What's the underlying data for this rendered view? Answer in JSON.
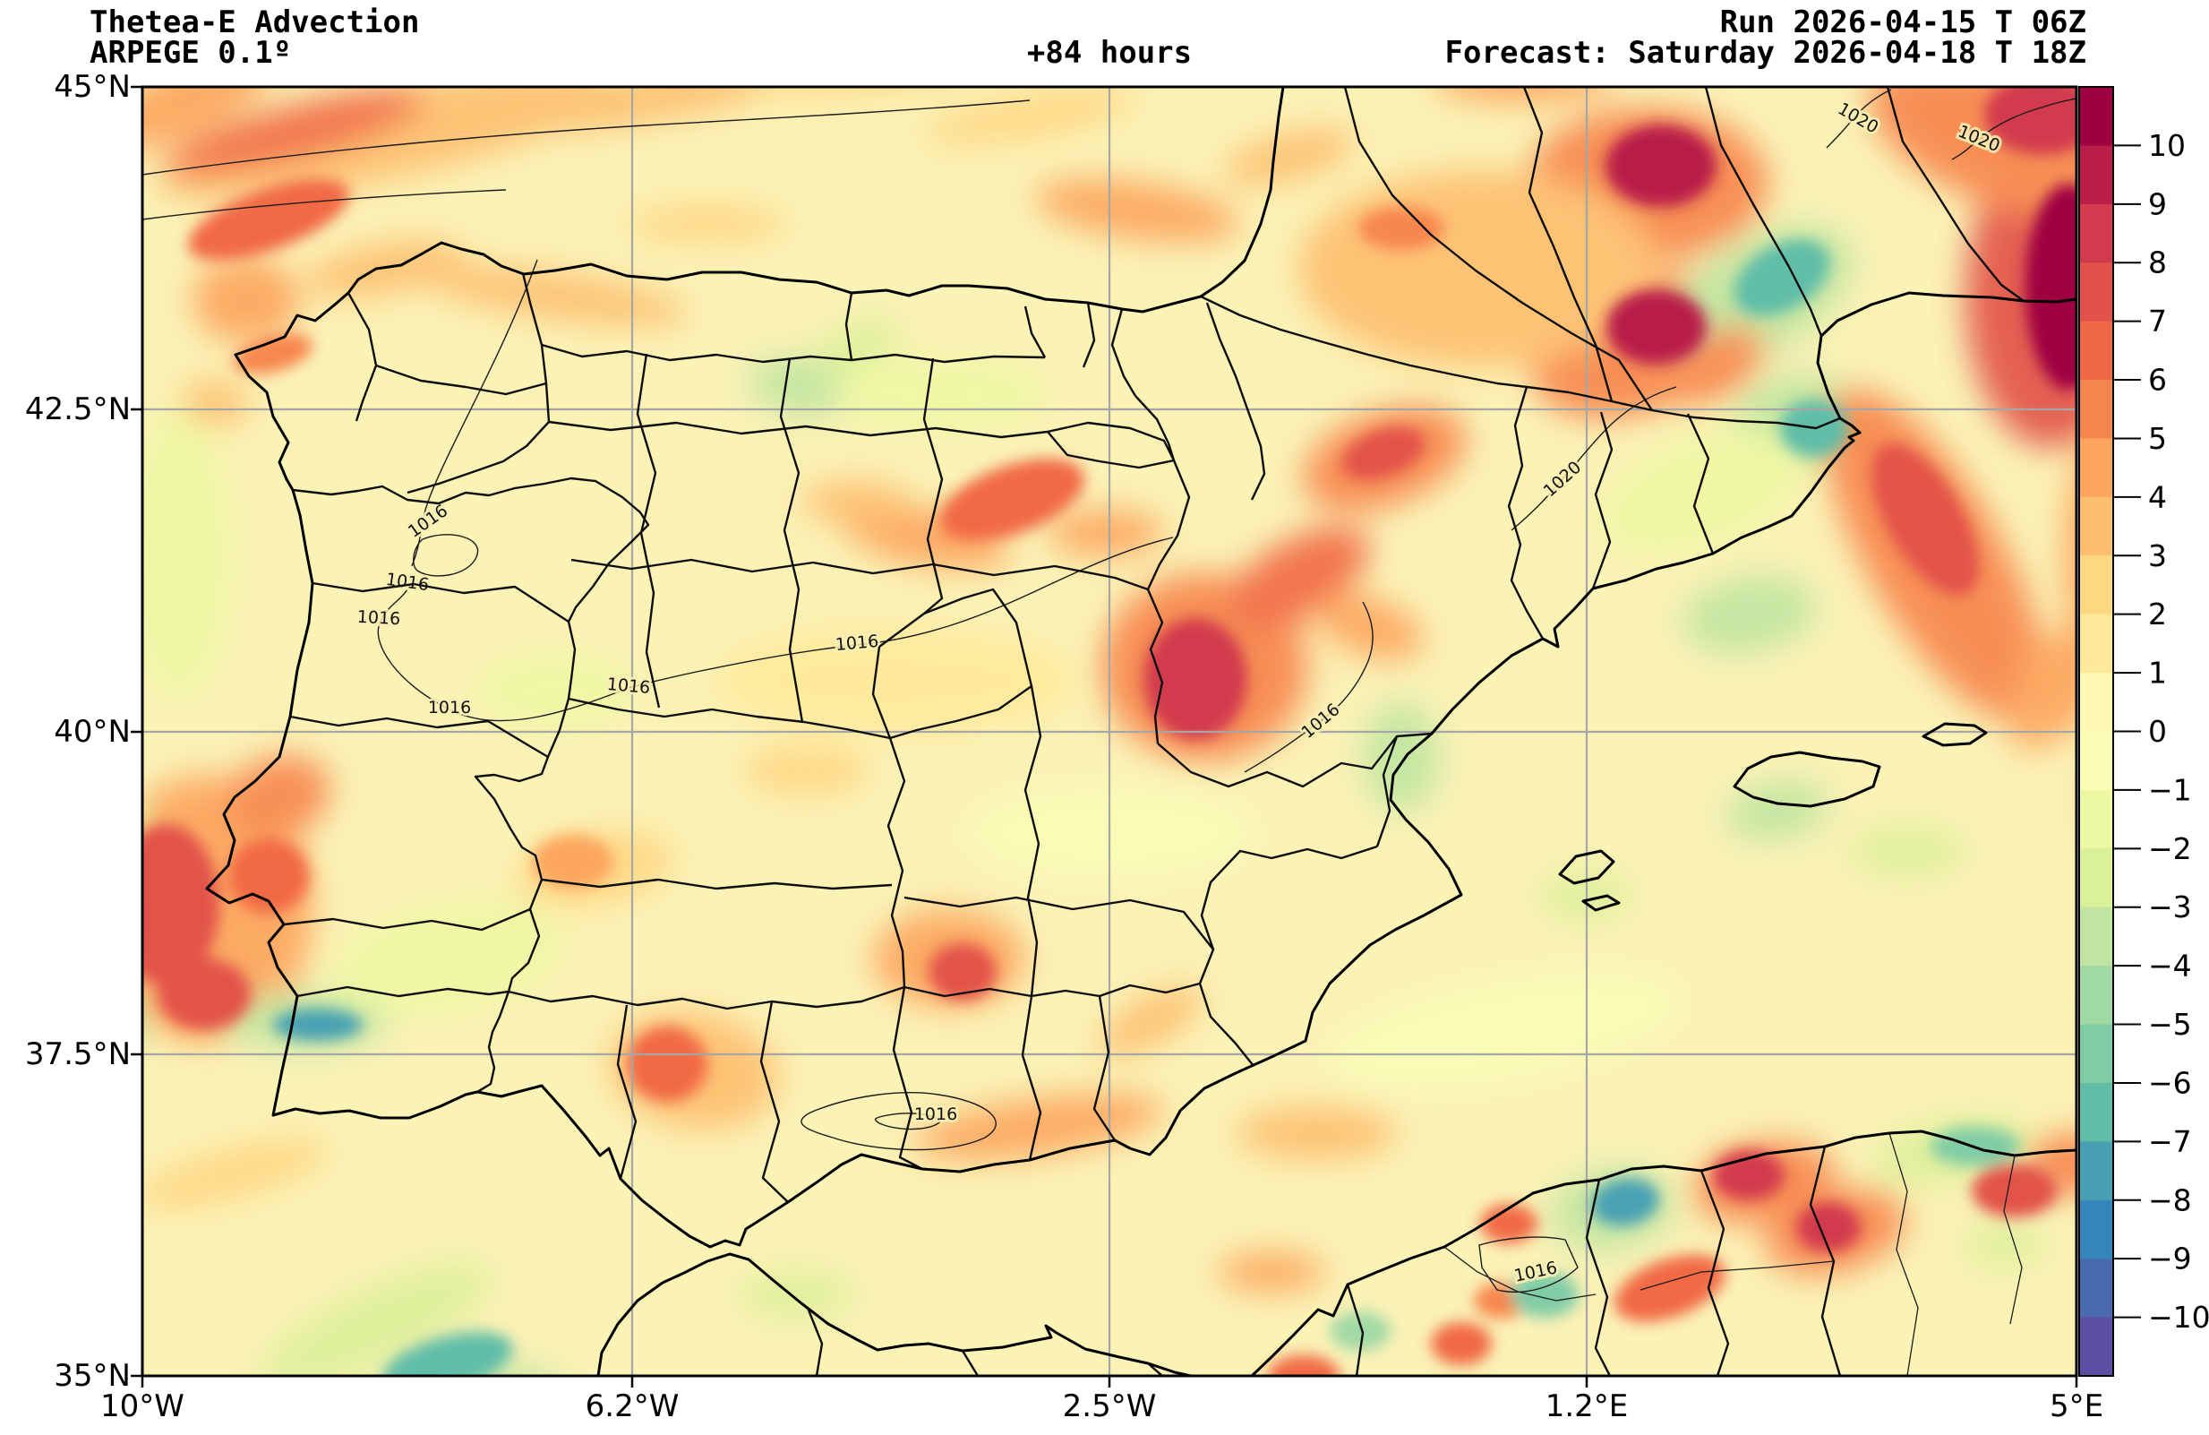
{
  "header": {
    "title_line1": "Thetea-E Advection",
    "title_line2": "ARPEGE 0.1º",
    "lead_time": "+84 hours",
    "run_label": "Run 2026-04-15 T 06Z",
    "forecast_label": "Forecast: Saturday 2026-04-18 T 18Z"
  },
  "axes": {
    "x_ticks": [
      {
        "label": "10°W",
        "x": 159
      },
      {
        "label": "6.2°W",
        "x": 706
      },
      {
        "label": "2.5°W",
        "x": 1239
      },
      {
        "label": "1.2°E",
        "x": 1772
      },
      {
        "label": "5°E",
        "x": 2319
      }
    ],
    "y_ticks": [
      {
        "label": "45°N",
        "y": 97
      },
      {
        "label": "42.5°N",
        "y": 457
      },
      {
        "label": "40°N",
        "y": 817
      },
      {
        "label": "37.5°N",
        "y": 1177
      },
      {
        "label": "35°N",
        "y": 1536
      }
    ]
  },
  "colorbar": {
    "tick_labels_top_to_bottom": [
      "10",
      "9",
      "8",
      "7",
      "6",
      "5",
      "4",
      "3",
      "2",
      "1",
      "0",
      "−1",
      "−2",
      "−3",
      "−4",
      "−5",
      "−6",
      "−7",
      "−8",
      "−9",
      "−10"
    ],
    "colors_top_to_bottom": [
      "#9e0142",
      "#b81e48",
      "#d23b4e",
      "#e2524a",
      "#f16944",
      "#f7864e",
      "#fca55d",
      "#fdbf6f",
      "#fed783",
      "#fee99a",
      "#fff8b3",
      "#f9fdb6",
      "#edf8a3",
      "#dbf09a",
      "#bfe5a0",
      "#a1d9a4",
      "#80cca5",
      "#61bda7",
      "#48a1b3",
      "#3485bc",
      "#496aaf",
      "#5e4fa2"
    ]
  },
  "chart_data": {
    "type": "heatmap",
    "subtype": "filled-contour-weather-map",
    "title": "Thetea-E Advection",
    "model": "ARPEGE 0.1º",
    "run": "2026-04-15 T 06Z",
    "valid": "Saturday 2026-04-18 T 18Z",
    "lead_hours": 84,
    "region": "Iberian Peninsula / Western Mediterranean / NW Africa",
    "lon_range_deg": [
      -10,
      5
    ],
    "lat_range_deg": [
      35,
      45
    ],
    "level_min": -10,
    "level_max": 10,
    "level_step": 1,
    "colormap": "Spectral_r",
    "grid_on": true,
    "base_value": 0.5,
    "isobar_labels": [
      {
        "value": "1016",
        "x": 478,
        "y": 582,
        "rot": -35
      },
      {
        "value": "1016",
        "x": 455,
        "y": 650,
        "rot": 8
      },
      {
        "value": "1016",
        "x": 423,
        "y": 690,
        "rot": 3
      },
      {
        "value": "1016",
        "x": 502,
        "y": 790,
        "rot": 0
      },
      {
        "value": "1016",
        "x": 702,
        "y": 766,
        "rot": 5
      },
      {
        "value": "1016",
        "x": 957,
        "y": 718,
        "rot": -5
      },
      {
        "value": "1016",
        "x": 1475,
        "y": 805,
        "rot": -40
      },
      {
        "value": "1016",
        "x": 1045,
        "y": 1244,
        "rot": 0
      },
      {
        "value": "1016",
        "x": 1715,
        "y": 1420,
        "rot": -12
      },
      {
        "value": "1020",
        "x": 1745,
        "y": 535,
        "rot": -42
      },
      {
        "value": "1020",
        "x": 2075,
        "y": 132,
        "rot": 30
      },
      {
        "value": "1020",
        "x": 2210,
        "y": 155,
        "rot": 22
      }
    ],
    "feature_format": "[x_px, y_px, rx_px, ry_px, rot_deg, advection_value, sharp_core]",
    "advection_features": [
      [
        430,
        150,
        260,
        50,
        -12,
        3,
        0
      ],
      [
        330,
        148,
        150,
        30,
        -15,
        6,
        0
      ],
      [
        210,
        110,
        100,
        40,
        -25,
        4,
        0
      ],
      [
        700,
        112,
        180,
        28,
        -8,
        3,
        0
      ],
      [
        960,
        80,
        130,
        24,
        -5,
        2,
        0
      ],
      [
        1150,
        130,
        120,
        25,
        -10,
        2,
        0
      ],
      [
        300,
        245,
        95,
        34,
        -20,
        6,
        1
      ],
      [
        275,
        335,
        60,
        48,
        0,
        4,
        0
      ],
      [
        430,
        300,
        90,
        28,
        -10,
        3,
        0
      ],
      [
        305,
        395,
        45,
        20,
        -15,
        5,
        1
      ],
      [
        240,
        450,
        38,
        26,
        0,
        3,
        0
      ],
      [
        620,
        330,
        150,
        26,
        8,
        3,
        0
      ],
      [
        790,
        250,
        90,
        22,
        0,
        2,
        0
      ],
      [
        895,
        432,
        60,
        32,
        10,
        -4,
        0
      ],
      [
        960,
        385,
        48,
        26,
        -20,
        -3,
        0
      ],
      [
        1270,
        235,
        115,
        32,
        8,
        4,
        0
      ],
      [
        1440,
        175,
        75,
        26,
        -15,
        3,
        0
      ],
      [
        1565,
        255,
        48,
        24,
        0,
        5,
        1
      ],
      [
        1130,
        558,
        85,
        38,
        -20,
        6,
        1
      ],
      [
        1035,
        600,
        95,
        32,
        10,
        4,
        0
      ],
      [
        1235,
        595,
        65,
        26,
        0,
        4,
        0
      ],
      [
        955,
        560,
        60,
        24,
        0,
        3,
        0
      ],
      [
        1855,
        185,
        62,
        46,
        0,
        9,
        1
      ],
      [
        1840,
        205,
        135,
        85,
        0,
        5,
        0
      ],
      [
        1850,
        365,
        56,
        42,
        0,
        9,
        1
      ],
      [
        1830,
        385,
        125,
        75,
        -20,
        5,
        0
      ],
      [
        1650,
        300,
        200,
        110,
        0,
        3,
        0
      ],
      [
        2310,
        320,
        48,
        115,
        0,
        10,
        1
      ],
      [
        2290,
        330,
        95,
        170,
        0,
        7,
        0
      ],
      [
        2281,
        128,
        65,
        45,
        0,
        8,
        1
      ],
      [
        2240,
        155,
        160,
        75,
        20,
        5,
        0
      ],
      [
        1990,
        310,
        58,
        36,
        -30,
        -7,
        1
      ],
      [
        1965,
        330,
        115,
        62,
        -30,
        -4,
        0
      ],
      [
        2026,
        478,
        38,
        32,
        0,
        -7,
        1
      ],
      [
        2012,
        470,
        75,
        52,
        0,
        -4,
        0
      ],
      [
        1954,
        686,
        75,
        42,
        -10,
        -4,
        0
      ],
      [
        1546,
        512,
        95,
        52,
        -20,
        5,
        0
      ],
      [
        1545,
        506,
        48,
        26,
        -20,
        7,
        1
      ],
      [
        1913,
        408,
        62,
        36,
        -30,
        5,
        0
      ],
      [
        2160,
        620,
        75,
        210,
        -30,
        5,
        0
      ],
      [
        2150,
        580,
        42,
        95,
        -30,
        7,
        1
      ],
      [
        1700,
        90,
        100,
        24,
        0,
        4,
        0
      ],
      [
        1335,
        758,
        58,
        68,
        0,
        8,
        1
      ],
      [
        1345,
        745,
        115,
        105,
        0,
        5,
        0
      ],
      [
        1450,
        645,
        88,
        42,
        -30,
        6,
        0
      ],
      [
        1530,
        700,
        62,
        32,
        20,
        4,
        0
      ],
      [
        1565,
        845,
        42,
        62,
        0,
        -4,
        0
      ],
      [
        1770,
        1000,
        50,
        28,
        0,
        -3,
        0
      ],
      [
        1985,
        905,
        58,
        32,
        -10,
        -4,
        0
      ],
      [
        2130,
        950,
        65,
        28,
        0,
        -3,
        0
      ],
      [
        2300,
        790,
        65,
        28,
        -40,
        4,
        0
      ],
      [
        2360,
        620,
        55,
        150,
        0,
        4,
        0
      ],
      [
        2310,
        750,
        75,
        42,
        -40,
        4,
        0
      ],
      [
        2389,
        890,
        55,
        85,
        0,
        3,
        0
      ],
      [
        185,
        1010,
        60,
        90,
        0,
        7,
        1
      ],
      [
        122,
        1025,
        35,
        40,
        0,
        8,
        1
      ],
      [
        230,
        1015,
        120,
        150,
        0,
        4,
        0
      ],
      [
        300,
        978,
        45,
        42,
        0,
        6,
        1
      ],
      [
        310,
        890,
        60,
        45,
        -20,
        5,
        0
      ],
      [
        228,
        1110,
        52,
        40,
        0,
        7,
        1
      ],
      [
        355,
        1144,
        50,
        18,
        0,
        -8,
        1
      ],
      [
        340,
        1140,
        95,
        32,
        0,
        -4,
        0
      ],
      [
        120,
        1140,
        40,
        45,
        0,
        -4,
        0
      ],
      [
        130,
        925,
        35,
        28,
        0,
        -3,
        0
      ],
      [
        500,
        1070,
        130,
        60,
        -10,
        -1.5,
        0
      ],
      [
        640,
        962,
        45,
        30,
        0,
        4,
        1
      ],
      [
        665,
        970,
        90,
        40,
        -10,
        2.5,
        0
      ],
      [
        745,
        1188,
        45,
        42,
        0,
        6,
        1
      ],
      [
        775,
        1195,
        95,
        65,
        10,
        3.5,
        0
      ],
      [
        1075,
        1085,
        38,
        32,
        0,
        7,
        1
      ],
      [
        1060,
        1070,
        85,
        55,
        0,
        4,
        0
      ],
      [
        900,
        860,
        70,
        28,
        0,
        2,
        0
      ],
      [
        1160,
        1258,
        140,
        32,
        -8,
        4,
        0
      ],
      [
        1285,
        1140,
        65,
        26,
        -30,
        3,
        0
      ],
      [
        1000,
        760,
        200,
        60,
        0,
        1.5,
        0
      ],
      [
        420,
        1480,
        140,
        42,
        -25,
        -3,
        0
      ],
      [
        500,
        1522,
        75,
        30,
        -15,
        -7,
        1
      ],
      [
        570,
        1548,
        55,
        22,
        0,
        -4,
        0
      ],
      [
        260,
        1310,
        110,
        28,
        -15,
        2,
        0
      ],
      [
        890,
        1445,
        65,
        26,
        0,
        -3,
        0
      ],
      [
        1953,
        1312,
        40,
        28,
        0,
        8,
        1
      ],
      [
        1970,
        1320,
        80,
        45,
        -10,
        5,
        0
      ],
      [
        2042,
        1370,
        36,
        28,
        0,
        8,
        1
      ],
      [
        2050,
        1375,
        80,
        45,
        -15,
        5,
        0
      ],
      [
        2250,
        1329,
        48,
        30,
        0,
        7,
        1
      ],
      [
        1865,
        1438,
        65,
        32,
        -20,
        6,
        1
      ],
      [
        1685,
        1366,
        32,
        22,
        0,
        6,
        1
      ],
      [
        1676,
        1452,
        30,
        20,
        0,
        5,
        1
      ],
      [
        1632,
        1500,
        34,
        24,
        0,
        6,
        1
      ],
      [
        1456,
        1535,
        40,
        22,
        0,
        6,
        1
      ],
      [
        1420,
        1420,
        60,
        22,
        0,
        4,
        0
      ],
      [
        1815,
        1342,
        38,
        26,
        -10,
        -8,
        1
      ],
      [
        1800,
        1350,
        70,
        45,
        -10,
        -4,
        0
      ],
      [
        1725,
        1445,
        38,
        26,
        0,
        -6,
        1
      ],
      [
        1519,
        1486,
        34,
        22,
        0,
        -5,
        1
      ],
      [
        2206,
        1280,
        50,
        22,
        0,
        -6,
        1
      ],
      [
        2180,
        1285,
        90,
        35,
        -10,
        -3,
        0
      ],
      [
        2239,
        1390,
        45,
        25,
        0,
        -3,
        0
      ],
      [
        2319,
        1300,
        60,
        35,
        0,
        5,
        0
      ],
      [
        2389,
        1180,
        45,
        65,
        0,
        7,
        1
      ],
      [
        2389,
        1090,
        38,
        50,
        0,
        5,
        0
      ],
      [
        1470,
        1265,
        90,
        30,
        0,
        3,
        0
      ],
      [
        200,
        620,
        60,
        160,
        0,
        -1.5,
        0
      ],
      [
        1240,
        930,
        160,
        50,
        0,
        -1,
        0
      ],
      [
        1680,
        1150,
        200,
        55,
        -10,
        -1,
        0
      ],
      [
        620,
        770,
        90,
        40,
        0,
        -1.5,
        0
      ],
      [
        1900,
        550,
        120,
        60,
        -20,
        -1.5,
        0
      ],
      [
        1050,
        440,
        120,
        40,
        0,
        -2,
        0
      ]
    ]
  }
}
